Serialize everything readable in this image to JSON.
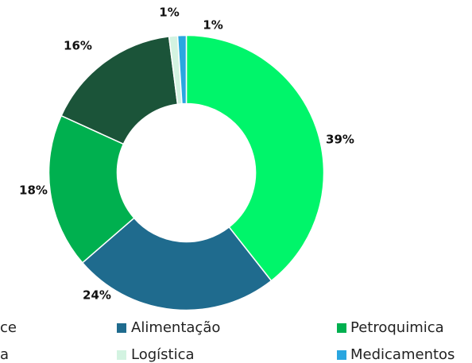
{
  "chart_data": {
    "type": "donut",
    "categories": [
      "ce",
      "Alimentação",
      "Petroquimica",
      "a",
      "Logística",
      "Medicamentos"
    ],
    "values": [
      39,
      24,
      18,
      16,
      1,
      1
    ],
    "value_labels": [
      "39%",
      "24%",
      "18%",
      "16%",
      "1%",
      "1%"
    ],
    "colors": [
      "#00f56a",
      "#1f6b8e",
      "#00b04f",
      "#1b5439",
      "#d3f3e1",
      "#2aa6e0"
    ],
    "legend": "bottom"
  }
}
